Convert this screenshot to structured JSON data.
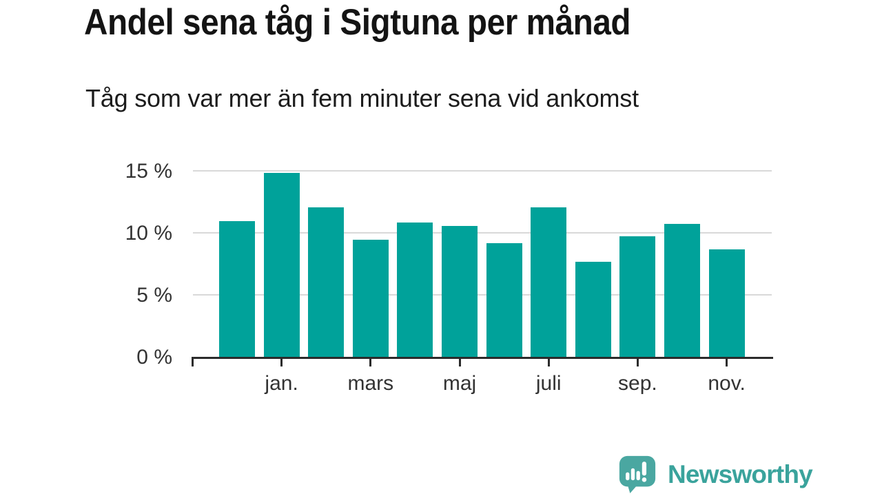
{
  "header": {
    "title": "Andel sena tåg i Sigtuna per månad",
    "subtitle": "Tåg som var mer än fem minuter sena vid ankomst"
  },
  "chart_data": {
    "type": "bar",
    "title": "Andel sena tåg i Sigtuna per månad",
    "subtitle": "Tåg som var mer än fem minuter sena vid ankomst",
    "unit": "%",
    "categories": [
      "",
      "jan.",
      "",
      "mars",
      "",
      "maj",
      "",
      "juli",
      "",
      "sep.",
      "",
      "nov."
    ],
    "values": [
      11.0,
      14.9,
      12.1,
      9.5,
      10.9,
      10.6,
      9.2,
      12.1,
      7.7,
      9.8,
      10.8,
      8.7
    ],
    "y_axis": [
      {
        "label": "0 %",
        "value": 0
      },
      {
        "label": "5 %",
        "value": 5
      },
      {
        "label": "10 %",
        "value": 10
      },
      {
        "label": "15 %",
        "value": 15
      }
    ],
    "ylim": [
      0,
      15.8
    ],
    "grid": "horizontal",
    "legend": "none",
    "bar_color": "#00a29a",
    "gridline_color": "#d9d9d9",
    "axis_color": "#2b2b2b",
    "label_color": "#333333"
  },
  "footer": {
    "brand": "Newsworthy",
    "logo_icon": "newsworthy-logo-icon",
    "brand_color": "#3aa39c",
    "icon_color": "#4aa7a1"
  }
}
